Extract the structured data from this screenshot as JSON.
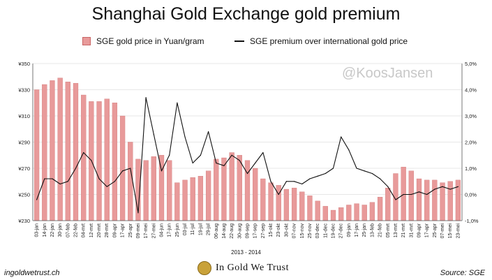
{
  "header": {
    "title": "Shanghai Gold Exchange gold premium"
  },
  "watermark": "@KoosJansen",
  "footer": {
    "left": "ingoldwetrust.ch",
    "brand": "In Gold We Trust",
    "right": "Source: SGE",
    "period": "2013 - 2014"
  },
  "colors": {
    "bar_fill": "#e89a9a",
    "bar_edge": "#c96666",
    "line": "#111111",
    "grid": "#d0d0d0"
  },
  "chart_data": {
    "type": "bar",
    "title": "Shanghai Gold Exchange gold premium",
    "xlabel": "2013 - 2014",
    "categories": [
      "03-jan",
      "14-jan",
      "22-jan",
      "30-jan",
      "07-feb",
      "22-feb",
      "04-mrt",
      "12-mrt",
      "20-mrt",
      "28-mrt",
      "09-apr",
      "17-apr",
      "25-apr",
      "09-mei",
      "17-mei",
      "27-mei",
      "04-jun",
      "17-jun",
      "25-jun",
      "03-jul",
      "11-jul",
      "19-jul",
      "29-jul",
      "06-aug",
      "14-aug",
      "22-aug",
      "30-aug",
      "09-sep",
      "17-sep",
      "27-sep",
      "15-okt",
      "23-okt",
      "30-okt",
      "07-nov",
      "15-nov",
      "25-nov",
      "03-dec",
      "11-dec",
      "19-dec",
      "27-dec",
      "09-jan",
      "17-jan",
      "25-jan",
      "13-feb",
      "21-feb",
      "05-mrt",
      "13-mrt",
      "21-mrt",
      "31-mrt",
      "09-apr",
      "17-apr",
      "25-apr",
      "07-mei",
      "15-mei",
      "23-mei"
    ],
    "legend": [
      "SGE gold price in Yuan/gram",
      "SGE premium over international gold price"
    ],
    "legend_position": "top",
    "y_left": {
      "ticks": [
        "¥230",
        "¥250",
        "¥270",
        "¥290",
        "¥310",
        "¥330",
        "¥350"
      ],
      "min": 230,
      "max": 350
    },
    "y_right": {
      "ticks": [
        "-1,0%",
        "0,0%",
        "1,0%",
        "2,0%",
        "3,0%",
        "4,0%",
        "5,0%"
      ],
      "min": -1,
      "max": 5
    },
    "series": [
      {
        "name": "SGE gold price in Yuan/gram",
        "type": "bar",
        "axis": "left",
        "values": [
          330,
          334,
          337,
          339,
          336,
          335,
          326,
          321,
          321,
          323,
          320,
          310,
          290,
          277,
          276,
          279,
          280,
          276,
          259,
          261,
          263,
          264,
          268,
          277,
          278,
          282,
          280,
          276,
          270,
          262,
          259,
          257,
          254,
          255,
          252,
          249,
          245,
          241,
          238,
          240,
          242,
          243,
          242,
          244,
          248,
          255,
          266,
          271,
          268,
          262,
          261,
          261,
          259,
          260,
          261
        ]
      },
      {
        "name": "SGE premium over international gold price",
        "type": "line",
        "axis": "right",
        "values": [
          -0.2,
          0.6,
          0.6,
          0.4,
          0.5,
          1.0,
          1.6,
          1.3,
          0.6,
          0.3,
          0.5,
          0.9,
          1.0,
          -0.7,
          3.7,
          2.3,
          0.9,
          1.5,
          3.5,
          2.2,
          1.2,
          1.5,
          2.4,
          1.2,
          1.1,
          1.5,
          1.3,
          0.8,
          1.2,
          1.6,
          0.5,
          0.0,
          0.5,
          0.5,
          0.4,
          0.6,
          0.7,
          0.8,
          1.0,
          2.2,
          1.7,
          1.0,
          0.9,
          0.8,
          0.6,
          0.3,
          -0.2,
          0.0,
          0.0,
          0.1,
          0.0,
          0.2,
          0.3,
          0.2,
          0.3
        ]
      }
    ]
  }
}
